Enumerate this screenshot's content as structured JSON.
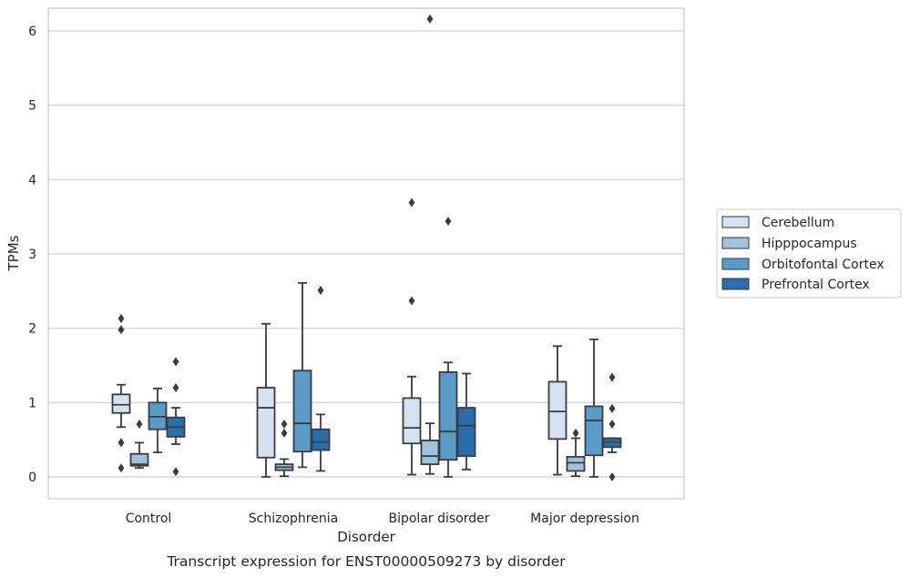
{
  "chart_data": {
    "type": "boxplot",
    "xlabel": "Disorder",
    "ylabel": "TPMs",
    "caption": "Transcript expression for ENST00000509273 by disorder",
    "ylim": [
      -0.3,
      6.5
    ],
    "yticks": [
      0,
      1,
      2,
      3,
      4,
      5,
      6
    ],
    "grid": "horizontal",
    "legend_position": "right",
    "categories": [
      "Control",
      "Schizophrenia",
      "Bipolar disorder",
      "Major depression"
    ],
    "series": [
      {
        "name": "Cerebellum",
        "color": "#d4e3f1",
        "boxes": [
          {
            "min": 0.67,
            "q1": 0.86,
            "median": 0.97,
            "q3": 1.11,
            "max": 1.24,
            "outliers": [
              2.13,
              1.98,
              0.46,
              0.12
            ]
          },
          {
            "min": 0.0,
            "q1": 0.26,
            "median": 0.93,
            "q3": 1.2,
            "max": 2.06,
            "outliers": []
          },
          {
            "min": 0.03,
            "q1": 0.45,
            "median": 0.66,
            "q3": 1.06,
            "max": 1.35,
            "outliers": [
              3.69,
              2.37
            ]
          },
          {
            "min": 0.03,
            "q1": 0.51,
            "median": 0.88,
            "q3": 1.28,
            "max": 1.76,
            "outliers": []
          }
        ]
      },
      {
        "name": "Hipppocampus",
        "color": "#9dc3df",
        "boxes": [
          {
            "min": 0.12,
            "q1": 0.15,
            "median": 0.17,
            "q3": 0.31,
            "max": 0.46,
            "outliers": [
              0.71
            ]
          },
          {
            "min": 0.01,
            "q1": 0.09,
            "median": 0.13,
            "q3": 0.17,
            "max": 0.24,
            "outliers": [
              0.71,
              0.59
            ]
          },
          {
            "min": 0.04,
            "q1": 0.17,
            "median": 0.28,
            "q3": 0.49,
            "max": 0.72,
            "outliers": [
              6.16
            ]
          },
          {
            "min": 0.01,
            "q1": 0.08,
            "median": 0.19,
            "q3": 0.27,
            "max": 0.52,
            "outliers": [
              0.59
            ]
          }
        ]
      },
      {
        "name": "Orbitofontal Cortex",
        "color": "#5a9cc8",
        "boxes": [
          {
            "min": 0.33,
            "q1": 0.64,
            "median": 0.81,
            "q3": 1.0,
            "max": 1.19,
            "outliers": []
          },
          {
            "min": 0.13,
            "q1": 0.34,
            "median": 0.72,
            "q3": 1.43,
            "max": 2.61,
            "outliers": []
          },
          {
            "min": 0.0,
            "q1": 0.23,
            "median": 0.61,
            "q3": 1.41,
            "max": 1.54,
            "outliers": [
              3.44
            ]
          },
          {
            "min": 0.0,
            "q1": 0.29,
            "median": 0.76,
            "q3": 0.95,
            "max": 1.85,
            "outliers": []
          }
        ]
      },
      {
        "name": "Prefrontal Cortex",
        "color": "#2a6fad",
        "boxes": [
          {
            "min": 0.44,
            "q1": 0.54,
            "median": 0.67,
            "q3": 0.8,
            "max": 0.93,
            "outliers": [
              1.55,
              1.2,
              0.07
            ]
          },
          {
            "min": 0.08,
            "q1": 0.36,
            "median": 0.47,
            "q3": 0.64,
            "max": 0.84,
            "outliers": [
              2.51
            ]
          },
          {
            "min": 0.1,
            "q1": 0.28,
            "median": 0.69,
            "q3": 0.93,
            "max": 1.39,
            "outliers": []
          },
          {
            "min": 0.33,
            "q1": 0.4,
            "median": 0.47,
            "q3": 0.52,
            "max": 0.52,
            "outliers": [
              1.34,
              0.92,
              0.71,
              0.0
            ]
          }
        ]
      }
    ]
  }
}
